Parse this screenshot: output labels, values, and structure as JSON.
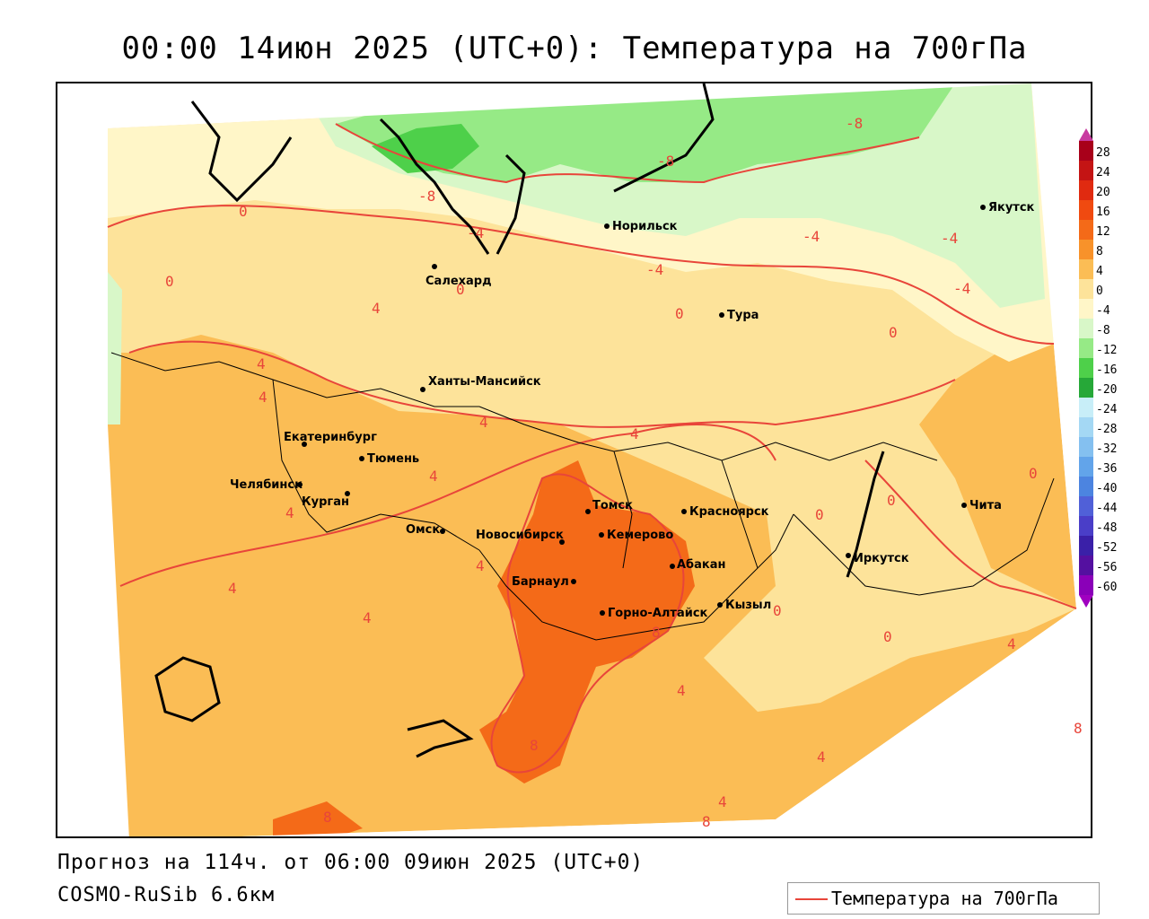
{
  "title": "00:00 14июн 2025 (UTC+0): Температура на 700гПа",
  "footer": {
    "forecast": "Прогноз на 114ч. от 06:00 09июн 2025 (UTC+0)",
    "model": "COSMO-RuSib 6.6км"
  },
  "legend": {
    "label": "Температура на 700гПа",
    "line_color": "#e8453a"
  },
  "colorbar": {
    "ticks": [
      "28",
      "24",
      "20",
      "16",
      "12",
      "8",
      "4",
      "0",
      "-4",
      "-8",
      "-12",
      "-16",
      "-20",
      "-24",
      "-28",
      "-32",
      "-36",
      "-40",
      "-44",
      "-48",
      "-52",
      "-56",
      "-60"
    ],
    "colors": [
      "#a8001a",
      "#c41414",
      "#e02a10",
      "#f04a10",
      "#f46a18",
      "#f8922a",
      "#fbbd55",
      "#fde39a",
      "#fff6c8",
      "#d8f7c8",
      "#96ea86",
      "#4ed04a",
      "#26a838",
      "#c8eef8",
      "#a4d8f4",
      "#84c0f0",
      "#62a4ea",
      "#4c84e0",
      "#5060d8",
      "#4a3ec8",
      "#3a20a8",
      "#5410a0",
      "#8a00b8"
    ]
  },
  "cities": [
    {
      "name": "Норильск"
    },
    {
      "name": "Якутск"
    },
    {
      "name": "Салехард"
    },
    {
      "name": "Тура"
    },
    {
      "name": "Ханты-Мансийск"
    },
    {
      "name": "Екатеринбург"
    },
    {
      "name": "Тюмень"
    },
    {
      "name": "Челябинск"
    },
    {
      "name": "Курган"
    },
    {
      "name": "Омск"
    },
    {
      "name": "Новосибирск"
    },
    {
      "name": "Томск"
    },
    {
      "name": "Кемерово"
    },
    {
      "name": "Красноярск"
    },
    {
      "name": "Абакан"
    },
    {
      "name": "Барнаул"
    },
    {
      "name": "Горно-Алтайск"
    },
    {
      "name": "Кызыл"
    },
    {
      "name": "Иркутск"
    },
    {
      "name": "Чита"
    }
  ],
  "contour_labels": [
    "0",
    "0",
    "0",
    "0",
    "0",
    "0",
    "0",
    "0",
    "0",
    "0",
    "4",
    "4",
    "4",
    "4",
    "4",
    "4",
    "4",
    "4",
    "4",
    "4",
    "4",
    "4",
    "4",
    "4",
    "-4",
    "-4",
    "-4",
    "-4",
    "-4",
    "-8",
    "-8",
    "-8",
    "8",
    "8",
    "8",
    "8",
    "8"
  ]
}
